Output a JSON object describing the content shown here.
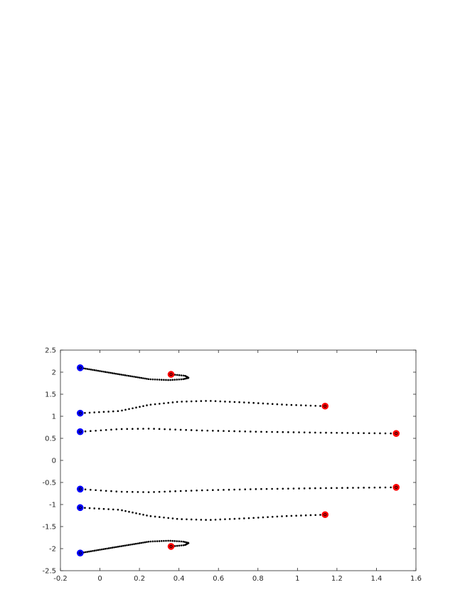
{
  "chart_data": {
    "type": "scatter",
    "title": "",
    "xlabel": "",
    "ylabel": "",
    "xlim": [
      -0.2,
      1.6
    ],
    "ylim": [
      -2.5,
      2.5
    ],
    "xticks": [
      -0.2,
      0,
      0.2,
      0.4,
      0.6,
      0.8,
      1,
      1.2,
      1.4,
      1.6
    ],
    "xtick_labels": [
      "-0.2",
      "0",
      "0.2",
      "0.4",
      "0.6",
      "0.8",
      "1",
      "1.2",
      "1.4",
      "1.6"
    ],
    "yticks": [
      -2.5,
      -2,
      -1.5,
      -1,
      -0.5,
      0,
      0.5,
      1,
      1.5,
      2,
      2.5
    ],
    "ytick_labels": [
      "-2.5",
      "-2",
      "-1.5",
      "-1",
      "-0.5",
      "0",
      "0.5",
      "1",
      "1.5",
      "2",
      "2.5"
    ],
    "grid": false,
    "legend": "none",
    "colors": {
      "path": "#000000",
      "start": "#0000ff",
      "end": "#ff0000",
      "axis": "#262626"
    },
    "series": [
      {
        "key": [
          [
            -0.1,
            2.1
          ],
          [
            0.1,
            1.95
          ],
          [
            0.25,
            1.84
          ],
          [
            0.35,
            1.82
          ],
          [
            0.42,
            1.84
          ],
          [
            0.45,
            1.87
          ],
          [
            0.43,
            1.92
          ],
          [
            0.36,
            1.95
          ]
        ],
        "points": 70
      },
      {
        "key": [
          [
            -0.1,
            1.07
          ],
          [
            0.1,
            1.12
          ],
          [
            0.25,
            1.26
          ],
          [
            0.4,
            1.33
          ],
          [
            0.55,
            1.35
          ],
          [
            0.75,
            1.31
          ],
          [
            0.95,
            1.26
          ],
          [
            1.14,
            1.23
          ]
        ],
        "points": 55
      },
      {
        "key": [
          [
            -0.1,
            0.65
          ],
          [
            0.1,
            0.71
          ],
          [
            0.25,
            0.72
          ],
          [
            0.5,
            0.68
          ],
          [
            0.8,
            0.65
          ],
          [
            1.1,
            0.63
          ],
          [
            1.3,
            0.62
          ],
          [
            1.5,
            0.61
          ]
        ],
        "points": 60
      },
      {
        "key": [
          [
            -0.1,
            -0.65
          ],
          [
            0.1,
            -0.71
          ],
          [
            0.25,
            -0.72
          ],
          [
            0.5,
            -0.68
          ],
          [
            0.8,
            -0.65
          ],
          [
            1.1,
            -0.63
          ],
          [
            1.3,
            -0.62
          ],
          [
            1.5,
            -0.61
          ]
        ],
        "points": 60
      },
      {
        "key": [
          [
            -0.1,
            -1.07
          ],
          [
            0.1,
            -1.12
          ],
          [
            0.25,
            -1.26
          ],
          [
            0.4,
            -1.33
          ],
          [
            0.55,
            -1.35
          ],
          [
            0.75,
            -1.31
          ],
          [
            0.95,
            -1.26
          ],
          [
            1.14,
            -1.23
          ]
        ],
        "points": 55
      },
      {
        "key": [
          [
            -0.1,
            -2.1
          ],
          [
            0.1,
            -1.95
          ],
          [
            0.25,
            -1.84
          ],
          [
            0.35,
            -1.82
          ],
          [
            0.42,
            -1.84
          ],
          [
            0.45,
            -1.87
          ],
          [
            0.43,
            -1.92
          ],
          [
            0.36,
            -1.95
          ]
        ],
        "points": 70
      }
    ],
    "start_points": [
      [
        -0.1,
        2.1
      ],
      [
        -0.1,
        1.07
      ],
      [
        -0.1,
        0.65
      ],
      [
        -0.1,
        -0.65
      ],
      [
        -0.1,
        -1.07
      ],
      [
        -0.1,
        -2.1
      ]
    ],
    "end_points": [
      [
        0.36,
        1.95
      ],
      [
        1.14,
        1.23
      ],
      [
        1.5,
        0.61
      ],
      [
        1.5,
        -0.61
      ],
      [
        1.14,
        -1.23
      ],
      [
        0.36,
        -1.95
      ]
    ]
  }
}
